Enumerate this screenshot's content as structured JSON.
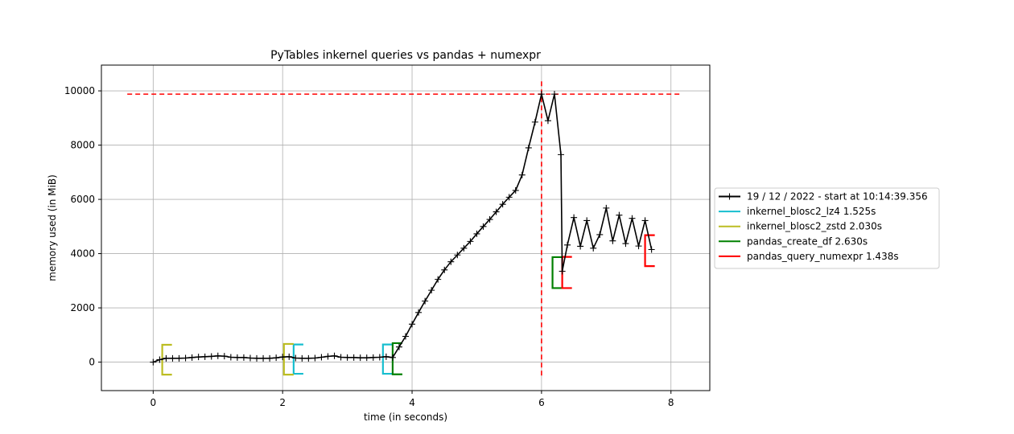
{
  "chart_data": {
    "type": "line",
    "title": "PyTables inkernel queries vs pandas + numexpr",
    "xlabel": "time (in seconds)",
    "ylabel": "memory used (in MiB)",
    "xlim": [
      -0.8,
      8.6
    ],
    "ylim": [
      -1050,
      10950
    ],
    "xticks": [
      0,
      2,
      4,
      6,
      8
    ],
    "yticks": [
      0,
      2000,
      4000,
      6000,
      8000,
      10000
    ],
    "grid": true,
    "legend_placement": "right, outside",
    "series": [
      {
        "name": "19 / 12 / 2022 - start at 10:14:39.356",
        "color": "#000000",
        "marker": "plus",
        "x": [
          0.0,
          0.1,
          0.2,
          0.3,
          0.4,
          0.5,
          0.6,
          0.7,
          0.8,
          0.9,
          1.0,
          1.1,
          1.2,
          1.3,
          1.4,
          1.5,
          1.6,
          1.7,
          1.8,
          1.9,
          2.0,
          2.1,
          2.2,
          2.3,
          2.4,
          2.5,
          2.6,
          2.7,
          2.8,
          2.9,
          3.0,
          3.1,
          3.2,
          3.3,
          3.4,
          3.5,
          3.6,
          3.7,
          3.8,
          3.9,
          4.0,
          4.1,
          4.2,
          4.3,
          4.4,
          4.5,
          4.6,
          4.7,
          4.8,
          4.9,
          5.0,
          5.1,
          5.2,
          5.3,
          5.4,
          5.5,
          5.6,
          5.7,
          5.8,
          5.9,
          6.0,
          6.1,
          6.2,
          6.3,
          6.32,
          6.4,
          6.5,
          6.6,
          6.7,
          6.8,
          6.9,
          7.0,
          7.1,
          7.2,
          7.3,
          7.4,
          7.5,
          7.6,
          7.7
        ],
        "values": [
          0,
          90,
          140,
          140,
          140,
          150,
          170,
          190,
          200,
          210,
          230,
          220,
          180,
          170,
          170,
          150,
          140,
          140,
          140,
          160,
          190,
          200,
          150,
          140,
          140,
          150,
          180,
          210,
          230,
          180,
          170,
          170,
          160,
          160,
          170,
          180,
          200,
          170,
          560,
          950,
          1400,
          1830,
          2250,
          2650,
          3050,
          3400,
          3700,
          3950,
          4200,
          4450,
          4730,
          5000,
          5260,
          5540,
          5820,
          6080,
          6330,
          6900,
          7900,
          8850,
          9880,
          8900,
          9880,
          7650,
          3350,
          4320,
          5330,
          4270,
          5220,
          4200,
          4700,
          5680,
          4470,
          5420,
          4370,
          5300,
          4280,
          5220,
          4150
        ]
      },
      {
        "name": "inkernel_blosc2_lz4 1.525s",
        "color": "#17becf",
        "brackets": [
          {
            "x_start": 2.17,
            "x_end": 2.32,
            "y_low": -430,
            "y_high": 650
          },
          {
            "x_start": 3.55,
            "x_end": 3.7,
            "y_low": -430,
            "y_high": 650
          }
        ]
      },
      {
        "name": "inkernel_blosc2_zstd 2.030s",
        "color": "#bcbd22",
        "brackets": [
          {
            "x_start": 0.14,
            "x_end": 0.29,
            "y_low": -460,
            "y_high": 640
          },
          {
            "x_start": 2.02,
            "x_end": 2.17,
            "y_low": -460,
            "y_high": 670
          }
        ]
      },
      {
        "name": "pandas_create_df 2.630s",
        "color": "#008000",
        "brackets": [
          {
            "x_start": 3.7,
            "x_end": 3.85,
            "y_low": -450,
            "y_high": 700
          },
          {
            "x_start": 6.17,
            "x_end": 6.32,
            "y_low": 2730,
            "y_high": 3870
          }
        ]
      },
      {
        "name": "pandas_query_numexpr 1.438s",
        "color": "#ff0000",
        "brackets": [
          {
            "x_start": 6.32,
            "x_end": 6.47,
            "y_low": 2730,
            "y_high": 3880
          },
          {
            "x_start": 7.6,
            "x_end": 7.75,
            "y_low": 3540,
            "y_high": 4680
          }
        ]
      }
    ],
    "max_memory_lines": {
      "color": "#ff0000",
      "style": "dashed",
      "horizontal_y": 9880,
      "horizontal_x_range": [
        -0.4,
        8.15
      ],
      "vertical_x": 6.0,
      "vertical_y_range": [
        -500,
        10350
      ]
    }
  }
}
